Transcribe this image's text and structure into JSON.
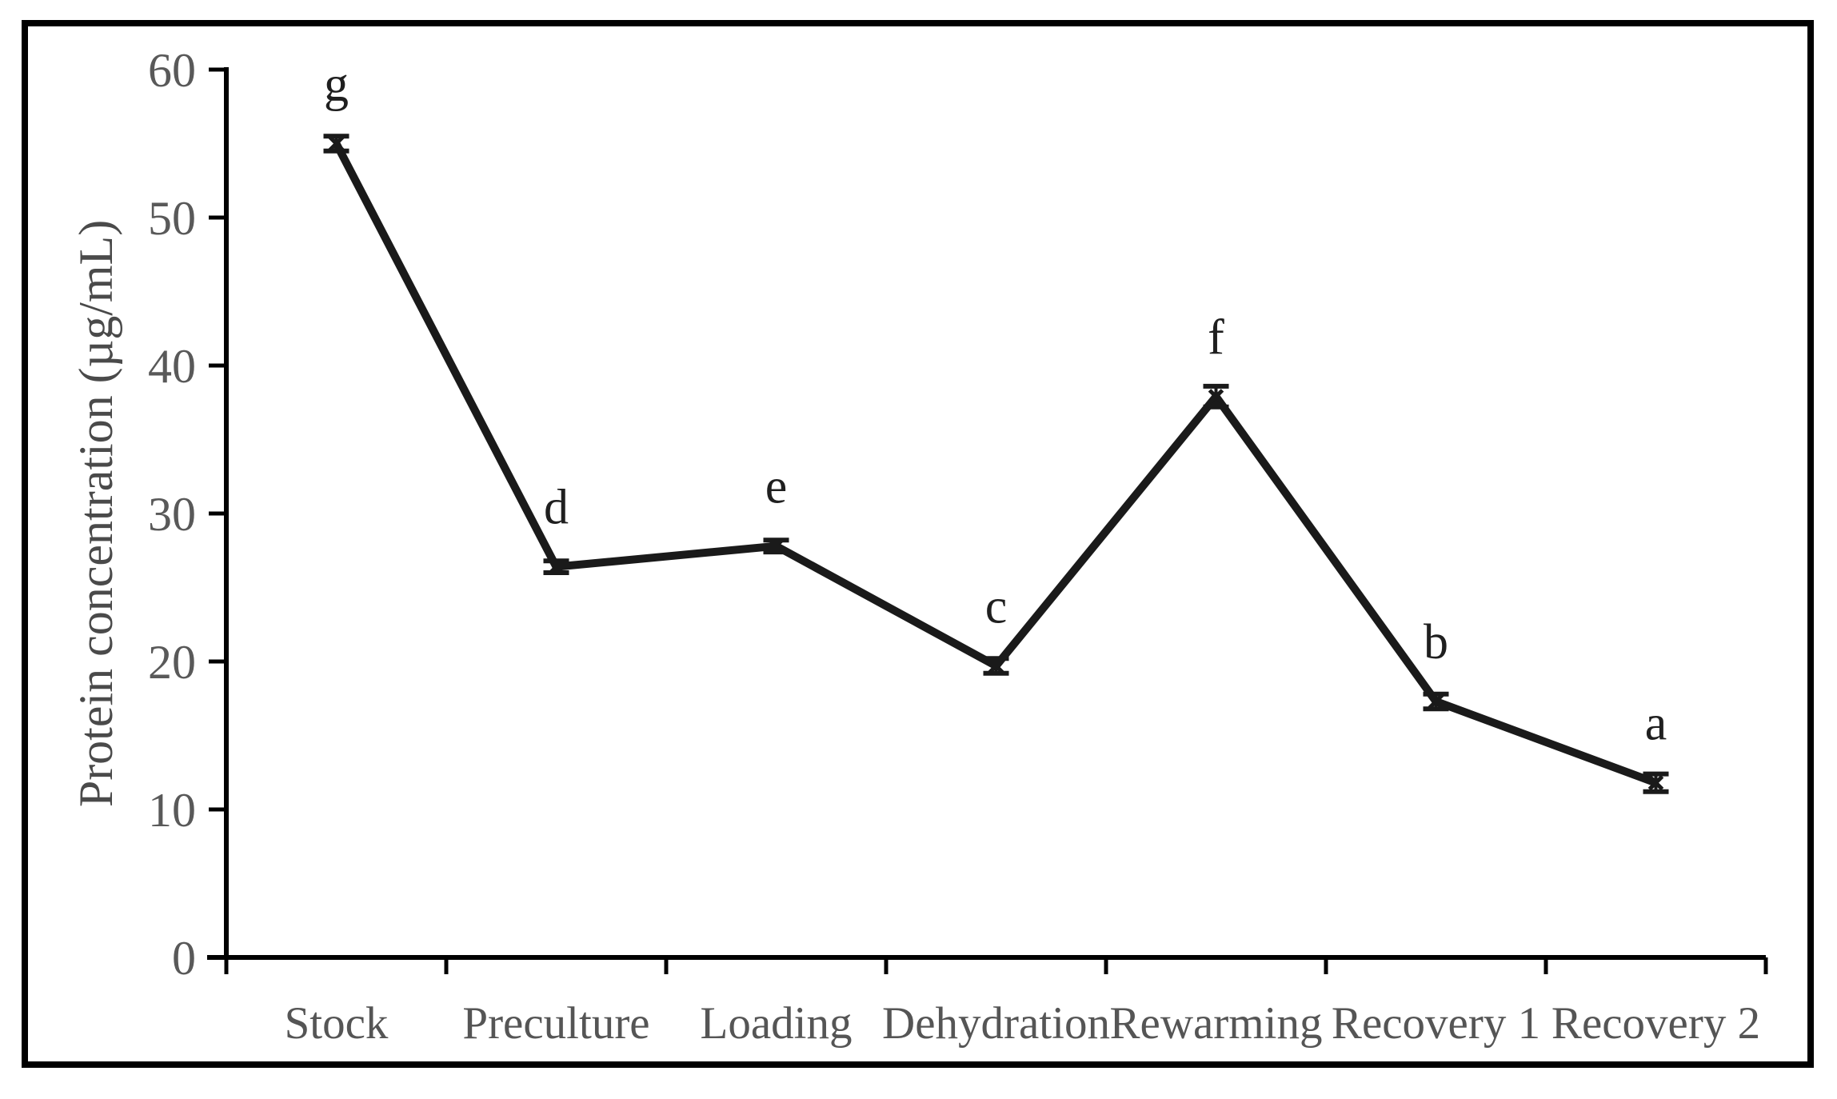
{
  "figure": {
    "background": "#ffffff",
    "border_color": "#000000"
  },
  "chart_data": {
    "type": "line",
    "title": "",
    "xlabel": "",
    "ylabel": "Protein concentration (µg/mL)",
    "categories": [
      "Stock",
      "Preculture",
      "Loading",
      "Dehydration",
      "Rewarming",
      "Recovery 1",
      "Recovery 2"
    ],
    "series": [
      {
        "name": "Protein concentration",
        "values": [
          55.0,
          26.4,
          27.8,
          19.7,
          37.9,
          17.3,
          11.8
        ],
        "errors": [
          0.5,
          0.4,
          0.4,
          0.5,
          0.7,
          0.5,
          0.6
        ],
        "point_labels": [
          "g",
          "d",
          "e",
          "c",
          "f",
          "b",
          "a"
        ]
      }
    ],
    "ylim": [
      0,
      60
    ],
    "yticks": [
      0,
      10,
      20,
      30,
      40,
      50,
      60
    ],
    "ytick_step": 10,
    "grid": false,
    "legend": false,
    "marker": "x-with-error-caps",
    "colors": {
      "line": "#1a1a1a",
      "marker": "#1a1a1a",
      "axis": "#000000",
      "tick_label": "#595959",
      "category_label": "#555555",
      "axis_label": "#4a4a4a",
      "point_letter": "#1f1f1f",
      "frame": "#000000"
    }
  }
}
